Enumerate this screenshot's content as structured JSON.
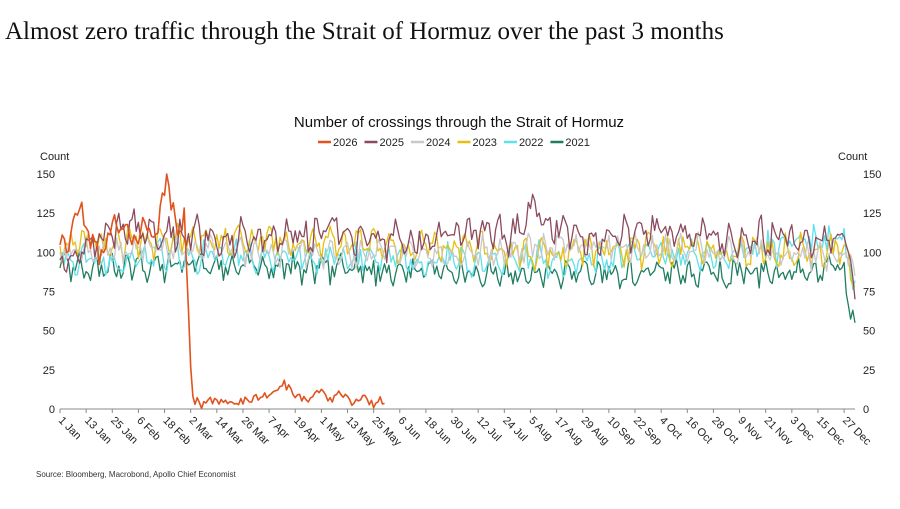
{
  "headline": "Almost zero traffic through the Strait of Hormuz over the past 3 months",
  "source": "Source: Bloomberg, Macrobond, Apollo Chief Economist",
  "chart_data": {
    "type": "line",
    "title": "Number of crossings through the Strait of Hormuz",
    "ylabel_left": "Count",
    "ylabel_right": "Count",
    "ylim": [
      0,
      150
    ],
    "yticks": [
      0,
      25,
      50,
      75,
      100,
      125,
      150
    ],
    "x_ticks": [
      "1 Jan",
      "13 Jan",
      "25 Jan",
      "6 Feb",
      "18 Feb",
      "2 Mar",
      "14 Mar",
      "26 Mar",
      "7 Apr",
      "19 Apr",
      "1 May",
      "13 May",
      "25 May",
      "6 Jun",
      "18 Jun",
      "30 Jun",
      "12 Jul",
      "24 Jul",
      "5 Aug",
      "17 Aug",
      "29 Aug",
      "10 Sep",
      "22 Sep",
      "4 Oct",
      "16 Oct",
      "28 Oct",
      "9 Nov",
      "21 Nov",
      "3 Dec",
      "15 Dec",
      "27 Dec"
    ],
    "x_tick_days": [
      1,
      13,
      25,
      37,
      49,
      61,
      73,
      85,
      97,
      109,
      121,
      133,
      145,
      157,
      169,
      181,
      193,
      205,
      217,
      229,
      241,
      253,
      265,
      277,
      289,
      301,
      313,
      325,
      337,
      349,
      361
    ],
    "x_domain_days": [
      1,
      366
    ],
    "legend_position": "top-center",
    "grid": false,
    "series": [
      {
        "name": "2026",
        "color": "#e2521d",
        "x_days": [
          1,
          5,
          10,
          15,
          20,
          25,
          30,
          35,
          40,
          45,
          50,
          55,
          58,
          60,
          62,
          63,
          64,
          66,
          70,
          75,
          80,
          85,
          90,
          95,
          100,
          104,
          107,
          110,
          115,
          120,
          125,
          130,
          135,
          140,
          145,
          148,
          150
        ],
        "values": [
          110,
          104,
          128,
          108,
          97,
          115,
          120,
          105,
          117,
          110,
          146,
          118,
          122,
          60,
          8,
          3,
          5,
          2,
          5,
          4,
          3,
          5,
          7,
          8,
          10,
          16,
          12,
          8,
          6,
          12,
          5,
          10,
          4,
          8,
          3,
          6,
          4
        ]
      },
      {
        "name": "2025",
        "color": "#8b4a5d",
        "x_days": [
          1,
          30,
          60,
          90,
          120,
          150,
          180,
          210,
          217,
          240,
          270,
          300,
          330,
          350,
          360,
          364,
          366
        ],
        "values": [
          95,
          118,
          112,
          110,
          113,
          108,
          111,
          112,
          128,
          110,
          114,
          111,
          110,
          108,
          112,
          95,
          70
        ],
        "base": 110,
        "amp": 13,
        "seed": 2
      },
      {
        "name": "2024",
        "color": "#c9c9c9",
        "x_days": [
          1,
          60,
          120,
          180,
          240,
          300,
          360,
          366
        ],
        "values": [
          100,
          102,
          98,
          100,
          104,
          102,
          98,
          85
        ],
        "base": 101,
        "amp": 10,
        "seed": 3
      },
      {
        "name": "2023",
        "color": "#e6bf12",
        "x_days": [
          1,
          60,
          120,
          180,
          240,
          300,
          360,
          366
        ],
        "values": [
          104,
          108,
          106,
          102,
          100,
          102,
          100,
          78
        ],
        "base": 103,
        "amp": 11,
        "seed": 4
      },
      {
        "name": "2022",
        "color": "#5fe0ea",
        "x_days": [
          1,
          60,
          120,
          180,
          240,
          300,
          360,
          366
        ],
        "values": [
          95,
          98,
          96,
          95,
          96,
          97,
          108,
          82
        ],
        "base": 96,
        "amp": 11,
        "seed": 5
      },
      {
        "name": "2021",
        "color": "#1f7d62",
        "x_days": [
          1,
          60,
          120,
          180,
          240,
          300,
          360,
          366
        ],
        "values": [
          90,
          92,
          90,
          88,
          88,
          86,
          90,
          55
        ],
        "base": 89,
        "amp": 10,
        "seed": 6
      }
    ]
  }
}
